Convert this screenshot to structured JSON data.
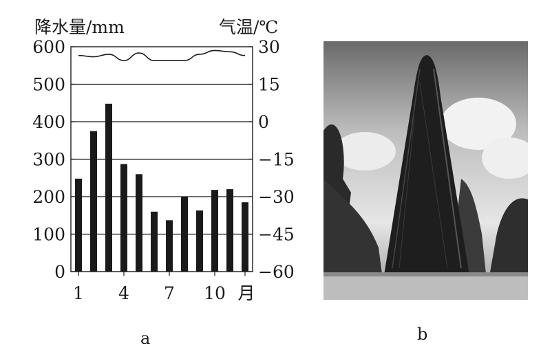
{
  "chart_data": {
    "type": "bar",
    "categories": [
      1,
      2,
      3,
      4,
      5,
      6,
      7,
      8,
      9,
      10,
      11,
      12
    ],
    "x_tick_labels": [
      "1",
      "4",
      "7",
      "10",
      "月"
    ],
    "y_left": {
      "label": "降水量/mm",
      "ylim": [
        0,
        600
      ],
      "ticks": [
        "600",
        "500",
        "400",
        "300",
        "200",
        "100",
        "0"
      ]
    },
    "y_right": {
      "label": "气温/℃",
      "ylim": [
        -60,
        30
      ],
      "ticks": [
        "30",
        "15",
        "0",
        "-15",
        "-30",
        "-45",
        "-60"
      ]
    },
    "series": [
      {
        "type": "bar",
        "axis": "left",
        "values": [
          248,
          375,
          448,
          287,
          260,
          160,
          137,
          200,
          163,
          218,
          220,
          185
        ]
      },
      {
        "type": "line",
        "axis": "right",
        "values": [
          26.5,
          26.0,
          27.0,
          24.5,
          27.5,
          24.5,
          24.5,
          24.5,
          27.0,
          28.5,
          28.0,
          26.5
        ]
      }
    ],
    "grid": true
  },
  "panels": {
    "a": "a",
    "b": "b"
  },
  "colors": {
    "ink": "#1a1a1a",
    "paper": "#ffffff"
  }
}
